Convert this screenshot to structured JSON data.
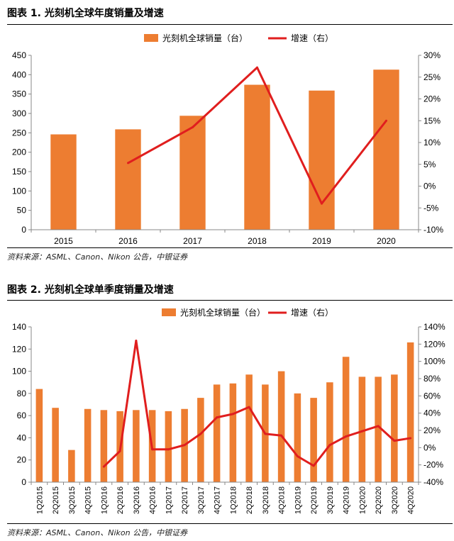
{
  "figures": [
    {
      "title": "图表 1. 光刻机全球年度销量及增速",
      "source": "资料来源：ASML、Canon、Nikon 公告，中银证券",
      "legend": {
        "bar_label": "光刻机全球销量（台）",
        "line_label": "增速（右）"
      },
      "colors": {
        "bar": "#ED7D31",
        "line": "#E01E1E"
      }
    },
    {
      "title": "图表 2. 光刻机全球单季度销量及增速",
      "source": "资料来源：ASML、Canon、Nikon 公告，中银证券",
      "legend": {
        "bar_label": "光刻机全球销量（台）",
        "line_label": "增速（右）"
      },
      "colors": {
        "bar": "#ED7D31",
        "line": "#E01E1E"
      }
    }
  ],
  "chart_data": [
    {
      "type": "bar",
      "categories": [
        "2015",
        "2016",
        "2017",
        "2018",
        "2019",
        "2020"
      ],
      "series": [
        {
          "name": "光刻机全球销量（台）",
          "type": "bar",
          "axis": "left",
          "values": [
            246,
            259,
            294,
            374,
            359,
            413
          ]
        },
        {
          "name": "增速（右）",
          "type": "line",
          "axis": "right",
          "values": [
            null,
            5.3,
            13.5,
            27.2,
            -4.0,
            15.0
          ]
        }
      ],
      "ylim": [
        0,
        450
      ],
      "yticks": [
        0,
        50,
        100,
        150,
        200,
        250,
        300,
        350,
        400,
        450
      ],
      "y2lim": [
        -10,
        30
      ],
      "y2ticks": [
        "-10%",
        "-5%",
        "0%",
        "5%",
        "10%",
        "15%",
        "20%",
        "25%",
        "30%"
      ],
      "legend_position": "top-center",
      "grid": false
    },
    {
      "type": "bar",
      "categories": [
        "1Q2015",
        "2Q2015",
        "3Q2015",
        "4Q2015",
        "1Q2016",
        "2Q2016",
        "3Q2016",
        "4Q2016",
        "1Q2017",
        "2Q2017",
        "3Q2017",
        "4Q2017",
        "1Q2018",
        "2Q2018",
        "3Q2018",
        "4Q2018",
        "1Q2019",
        "2Q2019",
        "3Q2019",
        "4Q2019",
        "1Q2020",
        "2Q2020",
        "3Q2020",
        "4Q2020"
      ],
      "series": [
        {
          "name": "光刻机全球销量（台）",
          "type": "bar",
          "axis": "left",
          "values": [
            84,
            67,
            29,
            66,
            65,
            64,
            65,
            65,
            64,
            66,
            76,
            88,
            89,
            97,
            88,
            100,
            80,
            76,
            90,
            113,
            95,
            95,
            97,
            126
          ]
        },
        {
          "name": "增速（右）",
          "type": "line",
          "axis": "right",
          "values": [
            null,
            null,
            null,
            null,
            -22,
            -4,
            124,
            -2,
            -2,
            3,
            16,
            35,
            39,
            47,
            16,
            14,
            -10,
            -21,
            3,
            13,
            19,
            25,
            8,
            11
          ]
        }
      ],
      "ylim": [
        0,
        140
      ],
      "yticks": [
        0,
        20,
        40,
        60,
        80,
        100,
        120,
        140
      ],
      "y2lim": [
        -40,
        140
      ],
      "y2ticks": [
        "-40%",
        "-20%",
        "0%",
        "20%",
        "40%",
        "60%",
        "80%",
        "100%",
        "120%",
        "140%"
      ],
      "legend_position": "top-center",
      "grid": false
    }
  ]
}
